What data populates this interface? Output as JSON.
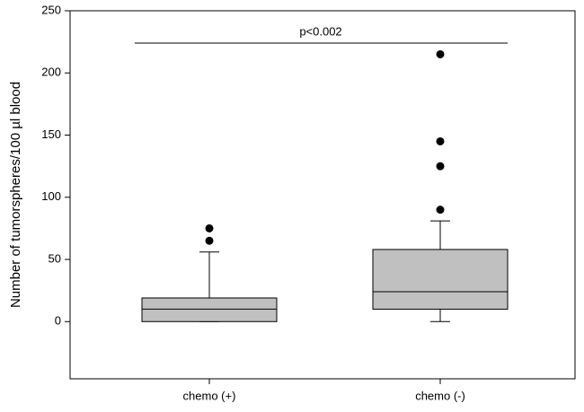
{
  "chart_data": {
    "type": "box",
    "y_label": "Number of tumorspheres/100 µl blood",
    "categories": [
      "chemo (+)",
      "chemo (-)"
    ],
    "color": "#c0c0c0",
    "boxes": [
      {
        "whisker_low": 0,
        "q1": 0,
        "median": 10,
        "q3": 19,
        "whisker_high": 56,
        "outliers": [
          65,
          75
        ]
      },
      {
        "whisker_low": 0,
        "q1": 10,
        "median": 24,
        "q3": 58,
        "whisker_high": 81,
        "outliers": [
          90,
          125,
          145,
          215
        ]
      }
    ],
    "annotation": {
      "text": "p<0.002",
      "y": 224
    },
    "ylim": [
      -46,
      250
    ],
    "yticks": [
      0,
      50,
      100,
      150,
      200,
      250
    ]
  }
}
